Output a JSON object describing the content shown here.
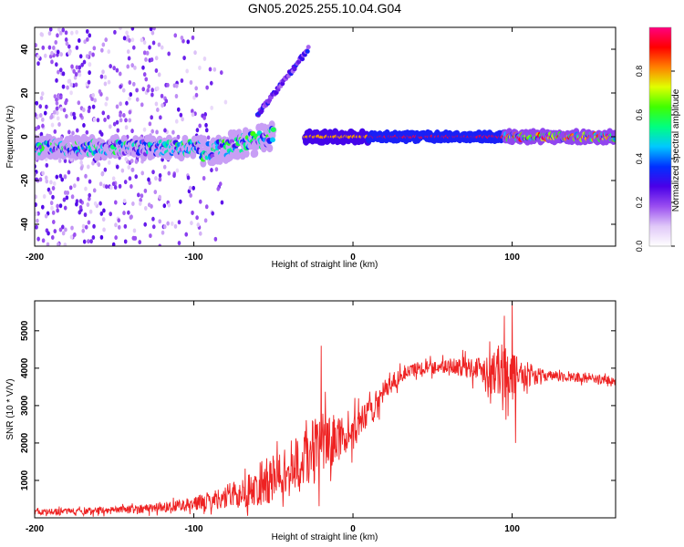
{
  "title": "GN05.2025.255.10.04.G04",
  "chart_data": [
    {
      "type": "heatmap",
      "name": "spectrogram",
      "xlabel": "Height of straight line (km)",
      "ylabel": "Frequency (Hz)",
      "xlim": [
        -200,
        165
      ],
      "ylim": [
        -50,
        50
      ],
      "xticks": [
        -200,
        -100,
        0,
        100
      ],
      "yticks": [
        -40,
        -20,
        0,
        20,
        40
      ],
      "colorbar": {
        "label": "Normalized spectral amplitude",
        "range": [
          0,
          1
        ],
        "ticks": [
          "0.0",
          "0.2",
          "0.4",
          "0.6",
          "0.8"
        ],
        "colors": [
          "#ffffff",
          "#e0c8f8",
          "#9a4ef0",
          "#4a00e8",
          "#0030ff",
          "#00c8ff",
          "#00ff80",
          "#40ff00",
          "#e0ff00",
          "#ff8000",
          "#ff0000",
          "#ff0080"
        ]
      },
      "segments": [
        {
          "x": [
            -200,
            -95
          ],
          "freq": -5,
          "spread": 3,
          "amplitude": 0.35
        },
        {
          "x": [
            -95,
            -50
          ],
          "freq_start": -7,
          "freq_end": 0,
          "spread": 4,
          "amplitude": 0.35
        },
        {
          "x": [
            -30,
            10
          ],
          "freq": 0,
          "spread": 1.5,
          "amplitude": 0.8
        },
        {
          "x": [
            10,
            95
          ],
          "freq": 0,
          "spread": 1,
          "amplitude": 0.95
        },
        {
          "x": [
            95,
            165
          ],
          "freq": 0,
          "spread": 1.5,
          "amplitude": 0.55
        }
      ],
      "harmonic_branch": {
        "x": [
          -60,
          -28
        ],
        "freq_start": 10,
        "freq_end": 40,
        "amplitude": 0.25
      },
      "noise_region": {
        "x": [
          -200,
          -95
        ],
        "freq": [
          -50,
          50
        ],
        "amplitude": 0.15
      }
    },
    {
      "type": "line",
      "name": "snr",
      "xlabel": "Height of straight line (km)",
      "ylabel": "SNR (10 * V/V)",
      "xlim": [
        -200,
        165
      ],
      "ylim": [
        0,
        5800
      ],
      "xticks": [
        -200,
        -100,
        0,
        100
      ],
      "yticks": [
        1000,
        2000,
        3000,
        4000,
        5000
      ],
      "color": "#ee2222",
      "trend": {
        "x": [
          -200,
          -150,
          -120,
          -100,
          -80,
          -60,
          -45,
          -30,
          -20,
          -10,
          0,
          10,
          20,
          30,
          40,
          60,
          80,
          95,
          105,
          120,
          140,
          165
        ],
        "value": [
          150,
          200,
          280,
          380,
          550,
          800,
          1150,
          1600,
          1900,
          2100,
          2300,
          2800,
          3400,
          3800,
          4000,
          4050,
          4000,
          3900,
          3850,
          3800,
          3750,
          3650
        ],
        "noise": [
          80,
          100,
          130,
          180,
          300,
          500,
          700,
          800,
          900,
          600,
          500,
          350,
          300,
          200,
          180,
          200,
          350,
          800,
          400,
          150,
          120,
          120
        ]
      },
      "spikes": [
        {
          "x": -20,
          "value": 4600
        },
        {
          "x": 95,
          "value": 5400
        },
        {
          "x": 100,
          "value": 5800
        },
        {
          "x": 102,
          "value": 2000
        }
      ]
    }
  ]
}
